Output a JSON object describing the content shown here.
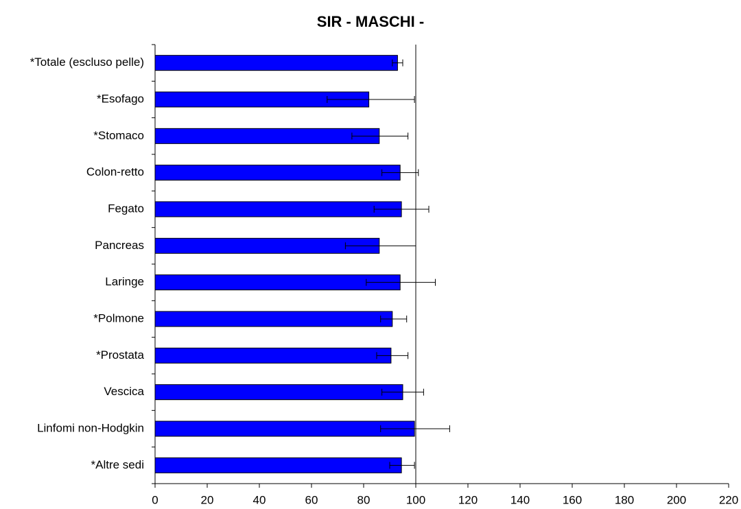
{
  "chart_data": {
    "type": "bar",
    "orientation": "horizontal",
    "title": "SIR - MASCHI -",
    "categories": [
      "*Totale (escluso pelle)",
      "*Esofago",
      "*Stomaco",
      "Colon-retto",
      "Fegato",
      "Pancreas",
      "Laringe",
      "*Polmone",
      "*Prostata",
      "Vescica",
      "Linfomi non-Hodgkin",
      "*Altre sedi"
    ],
    "values": [
      93,
      82,
      86,
      94,
      94.5,
      86,
      94,
      91,
      90.5,
      95,
      99.5,
      94.5
    ],
    "lower": [
      91,
      66,
      75.5,
      87,
      84,
      73,
      81,
      86.5,
      85,
      87,
      86.5,
      90
    ],
    "upper": [
      95,
      99.5,
      97,
      101,
      105,
      100,
      107.5,
      96.5,
      97,
      103,
      113,
      99.5
    ],
    "color": "#0000ff",
    "reference_line": 100,
    "xlim": [
      0,
      220
    ],
    "xticks": [
      0,
      20,
      40,
      60,
      80,
      100,
      120,
      140,
      160,
      180,
      200,
      220
    ]
  }
}
